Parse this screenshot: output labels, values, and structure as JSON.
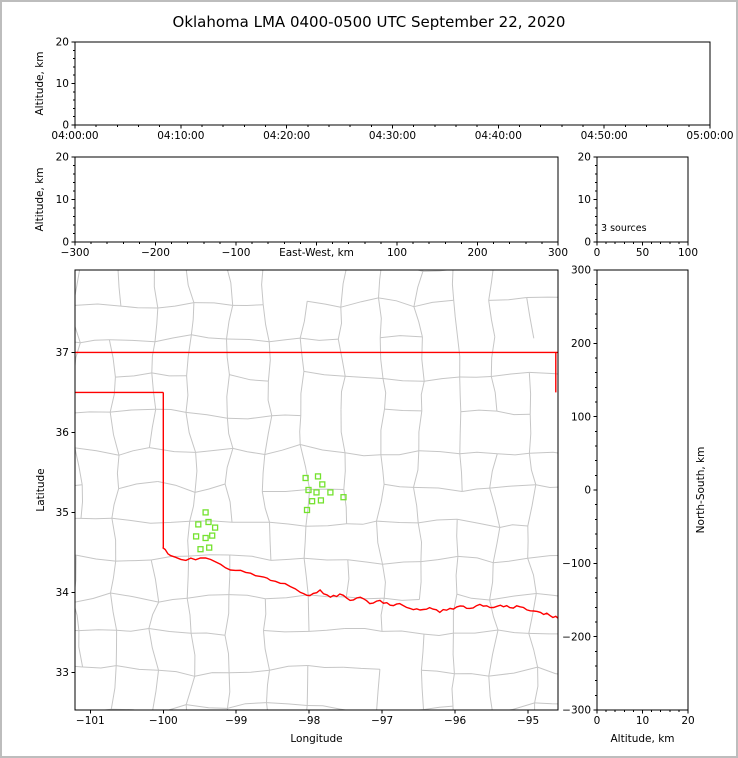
{
  "title": "Oklahoma LMA 0400-0500 UTC September 22, 2020",
  "colors": {
    "state_border": "#ff0000",
    "county_lines": "#c6c6c6",
    "station_marker": "#74e22e",
    "axis": "#000000",
    "background": "#ffffff",
    "frame": "#bdbdbd"
  },
  "chart_data": {
    "type": "scatter",
    "panels": {
      "time_height": {
        "ylabel": "Altitude, km",
        "xlim": [
          0,
          3600
        ],
        "ylim": [
          0,
          20
        ],
        "x_tick_values": [
          0,
          600,
          1200,
          1800,
          2400,
          3000,
          3600
        ],
        "x_tick_labels": [
          "04:00:00",
          "04:10:00",
          "04:20:00",
          "04:30:00",
          "04:40:00",
          "04:50:00",
          "05:00:00"
        ],
        "y_tick_values": [
          0,
          10,
          20
        ],
        "y_tick_labels": [
          "0",
          "10",
          "20"
        ],
        "points": []
      },
      "ew_height": {
        "xlabel": "East-West, km",
        "ylabel": "Altitude, km",
        "xlim": [
          -300,
          300
        ],
        "ylim": [
          0,
          20
        ],
        "x_tick_values": [
          -300,
          -200,
          -100,
          0,
          100,
          200,
          300
        ],
        "x_tick_labels": [
          "−300",
          "−200",
          "−100",
          "",
          "100",
          "200",
          "300"
        ],
        "y_tick_values": [
          0,
          10,
          20
        ],
        "y_tick_labels": [
          "0",
          "10",
          "20"
        ],
        "points": []
      },
      "histogram": {
        "annotation": "3 sources",
        "xlim": [
          0,
          100
        ],
        "ylim": [
          0,
          20
        ],
        "x_tick_values": [
          0,
          50,
          100
        ],
        "x_tick_labels": [
          "0",
          "50",
          "100"
        ],
        "y_tick_values": [
          0,
          10,
          20
        ],
        "y_tick_labels": [
          "0",
          "10",
          "20"
        ]
      },
      "map": {
        "xlabel": "Longitude",
        "ylabel": "Latitude",
        "xlim": [
          -101.21,
          -94.59
        ],
        "ylim": [
          32.53,
          38.03
        ],
        "x_tick_values": [
          -101,
          -100,
          -99,
          -98,
          -97,
          -96,
          -95
        ],
        "x_tick_labels": [
          "−101",
          "−100",
          "−99",
          "−98",
          "−97",
          "−96",
          "−95"
        ],
        "y_tick_values": [
          33,
          34,
          35,
          36,
          37
        ],
        "y_tick_labels": [
          "33",
          "34",
          "35",
          "36",
          "37"
        ],
        "stations": [
          [
            -99.42,
            35.0
          ],
          [
            -99.52,
            34.85
          ],
          [
            -99.38,
            34.88
          ],
          [
            -99.29,
            34.81
          ],
          [
            -99.55,
            34.7
          ],
          [
            -99.42,
            34.68
          ],
          [
            -99.33,
            34.71
          ],
          [
            -99.49,
            34.54
          ],
          [
            -99.37,
            34.56
          ],
          [
            -98.05,
            35.43
          ],
          [
            -97.88,
            35.45
          ],
          [
            -97.82,
            35.35
          ],
          [
            -98.01,
            35.28
          ],
          [
            -97.9,
            35.25
          ],
          [
            -97.71,
            35.25
          ],
          [
            -97.96,
            35.14
          ],
          [
            -97.84,
            35.15
          ],
          [
            -98.03,
            35.03
          ],
          [
            -97.53,
            35.19
          ]
        ],
        "state_border": {
          "north_latitude": 37.0,
          "panhandle_south_latitude": 36.5,
          "west_longitude": -100.0,
          "northeast_longitude": -94.62,
          "red_river": [
            [
              -100.01,
              34.56
            ],
            [
              -99.9,
              34.46
            ],
            [
              -99.69,
              34.4
            ],
            [
              -99.49,
              34.43
            ],
            [
              -99.28,
              34.38
            ],
            [
              -99.08,
              34.28
            ],
            [
              -98.87,
              34.25
            ],
            [
              -98.67,
              34.2
            ],
            [
              -98.53,
              34.15
            ],
            [
              -98.33,
              34.11
            ],
            [
              -98.12,
              34.0
            ],
            [
              -97.99,
              33.96
            ],
            [
              -97.85,
              34.03
            ],
            [
              -97.71,
              33.94
            ],
            [
              -97.58,
              33.98
            ],
            [
              -97.44,
              33.9
            ],
            [
              -97.3,
              33.94
            ],
            [
              -97.17,
              33.86
            ],
            [
              -97.03,
              33.9
            ],
            [
              -96.89,
              33.84
            ],
            [
              -96.76,
              33.86
            ],
            [
              -96.62,
              33.8
            ],
            [
              -96.48,
              33.78
            ],
            [
              -96.35,
              33.81
            ],
            [
              -96.21,
              33.75
            ],
            [
              -96.07,
              33.8
            ],
            [
              -95.93,
              33.83
            ],
            [
              -95.8,
              33.8
            ],
            [
              -95.66,
              33.85
            ],
            [
              -95.52,
              33.81
            ],
            [
              -95.38,
              33.84
            ],
            [
              -95.25,
              33.81
            ],
            [
              -95.11,
              33.82
            ],
            [
              -94.97,
              33.77
            ],
            [
              -94.83,
              33.75
            ],
            [
              -94.7,
              33.71
            ],
            [
              -94.58,
              33.67
            ]
          ]
        }
      },
      "ns_height": {
        "xlabel": "Altitude, km",
        "ylabel": "North-South, km",
        "xlim": [
          0,
          20
        ],
        "ylim": [
          -300,
          300
        ],
        "x_tick_values": [
          0,
          10,
          20
        ],
        "x_tick_labels": [
          "0",
          "10",
          "20"
        ],
        "y_tick_values": [
          300,
          200,
          100,
          0,
          -100,
          -200,
          -300
        ],
        "y_tick_labels": [
          "300",
          "200",
          "100",
          "0",
          "−100",
          "−200",
          "−300"
        ],
        "points": []
      }
    }
  }
}
